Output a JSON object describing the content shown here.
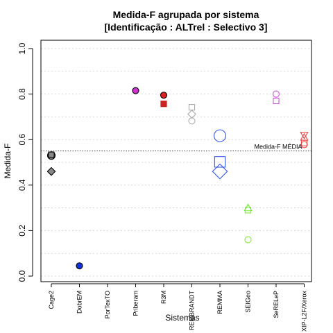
{
  "chart_data": {
    "type": "scatter",
    "title": "Medida-F agrupada por sistema",
    "subtitle": "[Identificação : ALTrel : Selectivo 3]",
    "xlabel": "Sistemas",
    "ylabel": "Medida-F",
    "ylim": [
      0.0,
      1.0
    ],
    "yticks": [
      "0.0",
      "0.2",
      "0.4",
      "0.6",
      "0.8",
      "1.0"
    ],
    "grid": "horizontal dotted",
    "categories": [
      "Cage2",
      "DobrEM",
      "PorTexTO",
      "Priberam",
      "R3M",
      "REMBRANDT",
      "REMMA",
      "SEIGeo",
      "SeRELeP",
      "XIP-L2F/Xerox"
    ],
    "reference_line": {
      "value": 0.55,
      "label": "Medida-F MÉDIA"
    },
    "points": [
      {
        "category": "Cage2",
        "y": 0.53,
        "shape": "circle",
        "size": "medium",
        "filled": true,
        "fill": "#888888",
        "stroke": "#000000"
      },
      {
        "category": "Cage2",
        "y": 0.533,
        "shape": "square",
        "size": "small",
        "filled": true,
        "fill": "#888888",
        "stroke": "#000000"
      },
      {
        "category": "Cage2",
        "y": 0.46,
        "shape": "diamond",
        "size": "small",
        "filled": true,
        "fill": "#888888",
        "stroke": "#000000"
      },
      {
        "category": "DobrEM",
        "y": 0.045,
        "shape": "circle",
        "size": "small",
        "filled": true,
        "fill": "#1133dd",
        "stroke": "#000000"
      },
      {
        "category": "Priberam",
        "y": 0.815,
        "shape": "circle",
        "size": "small",
        "filled": true,
        "fill": "#cc33cc",
        "stroke": "#000000"
      },
      {
        "category": "R3M",
        "y": 0.795,
        "shape": "circle",
        "size": "small",
        "filled": true,
        "fill": "#dd2222",
        "stroke": "#000000"
      },
      {
        "category": "R3M",
        "y": 0.757,
        "shape": "square",
        "size": "small",
        "filled": true,
        "fill": "#cc2222",
        "stroke": "#cc2222"
      },
      {
        "category": "REMBRANDT",
        "y": 0.742,
        "shape": "square",
        "size": "small",
        "filled": false,
        "fill": "none",
        "stroke": "#aaaaaa"
      },
      {
        "category": "REMBRANDT",
        "y": 0.712,
        "shape": "diamond",
        "size": "small",
        "filled": false,
        "fill": "none",
        "stroke": "#aaaaaa"
      },
      {
        "category": "REMBRANDT",
        "y": 0.682,
        "shape": "circle",
        "size": "small",
        "filled": false,
        "fill": "none",
        "stroke": "#aaaaaa"
      },
      {
        "category": "REMMA",
        "y": 0.617,
        "shape": "circle",
        "size": "large",
        "filled": false,
        "fill": "none",
        "stroke": "#3355ee"
      },
      {
        "category": "REMMA",
        "y": 0.502,
        "shape": "square",
        "size": "large",
        "filled": false,
        "fill": "none",
        "stroke": "#3355ee"
      },
      {
        "category": "REMMA",
        "y": 0.46,
        "shape": "diamond",
        "size": "large",
        "filled": false,
        "fill": "none",
        "stroke": "#3355ee"
      },
      {
        "category": "SEIGeo",
        "y": 0.3,
        "shape": "triangle",
        "size": "small",
        "filled": false,
        "fill": "none",
        "stroke": "#77ee33"
      },
      {
        "category": "SEIGeo",
        "y": 0.29,
        "shape": "square",
        "size": "small",
        "filled": false,
        "fill": "none",
        "stroke": "#77ee33"
      },
      {
        "category": "SEIGeo",
        "y": 0.16,
        "shape": "circle",
        "size": "small",
        "filled": false,
        "fill": "none",
        "stroke": "#77ee33"
      },
      {
        "category": "SeRELeP",
        "y": 0.8,
        "shape": "circle",
        "size": "small",
        "filled": false,
        "fill": "none",
        "stroke": "#cc55dd"
      },
      {
        "category": "SeRELeP",
        "y": 0.77,
        "shape": "square",
        "size": "small",
        "filled": false,
        "fill": "none",
        "stroke": "#cc55dd"
      },
      {
        "category": "XIP-L2F/Xerox",
        "y": 0.62,
        "shape": "triangle-down",
        "size": "small",
        "filled": false,
        "fill": "none",
        "stroke": "#ee4444"
      },
      {
        "category": "XIP-L2F/Xerox",
        "y": 0.61,
        "shape": "triangle",
        "size": "small",
        "filled": false,
        "fill": "none",
        "stroke": "#ee4444"
      },
      {
        "category": "XIP-L2F/Xerox",
        "y": 0.585,
        "shape": "square",
        "size": "small",
        "filled": false,
        "fill": "none",
        "stroke": "#ee4444"
      },
      {
        "category": "XIP-L2F/Xerox",
        "y": 0.578,
        "shape": "circle",
        "size": "small",
        "filled": false,
        "fill": "none",
        "stroke": "#ee4444"
      }
    ]
  }
}
